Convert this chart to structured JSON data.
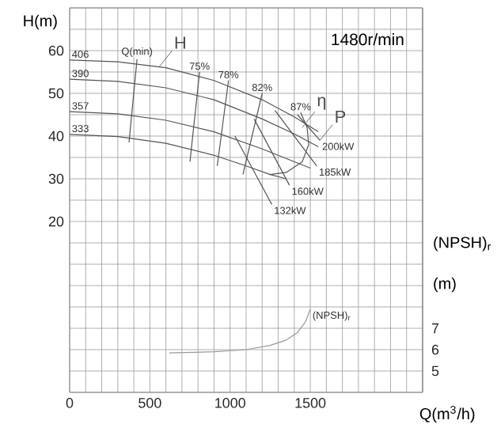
{
  "chart_data": {
    "type": "line",
    "xlabel": "Q(m$^{3}$/h)",
    "ylabel": "H(m)",
    "y2label": "(NPSH)$_{r}$ (m)",
    "xlim": [
      0,
      2200
    ],
    "ylim": [
      -20,
      70
    ],
    "y2lim": [
      4,
      22
    ],
    "xticks": [
      0,
      {
        "value": 100,
        "label": null
      },
      {
        "value": 200,
        "label": null
      },
      {
        "value": 300,
        "label": null
      },
      {
        "value": 400,
        "label": null
      },
      500,
      {
        "value": 600,
        "label": null
      },
      {
        "value": 700,
        "label": null
      },
      {
        "value": 800,
        "label": null
      },
      {
        "value": 900,
        "label": null
      },
      1000,
      {
        "value": 1100,
        "label": null
      },
      {
        "value": 1200,
        "label": null
      },
      {
        "value": 1300,
        "label": null
      },
      {
        "value": 1400,
        "label": null
      },
      1500,
      {
        "value": 1600,
        "label": null
      },
      {
        "value": 1700,
        "label": null
      },
      {
        "value": 1800,
        "label": null
      },
      {
        "value": 1900,
        "label": null
      },
      {
        "value": 2000,
        "label": null
      },
      {
        "value": 2100,
        "label": null
      },
      {
        "value": 2200,
        "label": null
      }
    ],
    "yticks": [
      {
        "value": -20,
        "label": null
      },
      {
        "value": -15,
        "label": null
      },
      {
        "value": -10,
        "label": null
      },
      {
        "value": -5,
        "label": null
      },
      {
        "value": 0,
        "label": null
      },
      {
        "value": 5,
        "label": null
      },
      {
        "value": 10,
        "label": null
      },
      {
        "value": 15,
        "label": null
      },
      20,
      {
        "value": 25,
        "label": null
      },
      30,
      {
        "value": 35,
        "label": null
      },
      40,
      {
        "value": 45,
        "label": null
      },
      50,
      {
        "value": 55,
        "label": null
      },
      60,
      {
        "value": 65,
        "label": null
      },
      {
        "value": 70,
        "label": null
      }
    ],
    "y2ticks": [
      5,
      6,
      7
    ],
    "grid": true,
    "series": [
      {
        "name": "406",
        "color": "#555555",
        "x": [
          0,
          300,
          600,
          900,
          1200,
          1400,
          1550
        ],
        "values": [
          57.8,
          57.4,
          56,
          53,
          48.5,
          44.5,
          41
        ]
      },
      {
        "name": "390",
        "color": "#555555",
        "x": [
          0,
          300,
          600,
          900,
          1200,
          1400,
          1550
        ],
        "values": [
          53.3,
          52.8,
          51.3,
          48.5,
          44,
          40.5,
          37.5
        ]
      },
      {
        "name": "357",
        "color": "#555555",
        "x": [
          0,
          300,
          600,
          900,
          1200,
          1400,
          1500
        ],
        "values": [
          45.7,
          45.2,
          43.7,
          41,
          37,
          34,
          32.5
        ]
      },
      {
        "name": "333",
        "color": "#555555",
        "x": [
          0,
          300,
          600,
          900,
          1100,
          1250,
          1350
        ],
        "values": [
          40.4,
          39.9,
          38.3,
          35.5,
          33,
          31,
          30
        ]
      },
      {
        "name": "Q(min)",
        "color": "#555555",
        "x": [
          420,
          370
        ],
        "values": [
          58,
          38.5
        ]
      },
      {
        "name": "75%",
        "color": "#555555",
        "x": [
          810,
          750
        ],
        "values": [
          55,
          34
        ]
      },
      {
        "name": "78%",
        "color": "#555555",
        "x": [
          990,
          920
        ],
        "values": [
          53,
          33
        ]
      },
      {
        "name": "82%",
        "color": "#555555",
        "x": [
          1200,
          1080
        ],
        "values": [
          50,
          31
        ]
      },
      {
        "name": "87%",
        "color": "#555555",
        "x": [
          1440,
          1480,
          1490,
          1450,
          1350,
          1250
        ],
        "values": [
          45.5,
          42,
          38,
          34,
          31.5,
          31
        ]
      },
      {
        "name": "200kW",
        "color": "#555555",
        "x": [
          1560,
          1420
        ],
        "values": [
          39,
          45
        ]
      },
      {
        "name": "185kW",
        "color": "#555555",
        "x": [
          1540,
          1280
        ],
        "values": [
          33,
          46
        ]
      },
      {
        "name": "160kW",
        "color": "#555555",
        "x": [
          1370,
          1150
        ],
        "values": [
          28.5,
          44
        ]
      },
      {
        "name": "132kW",
        "color": "#555555",
        "x": [
          1260,
          1030
        ],
        "values": [
          24,
          40
        ]
      },
      {
        "name": "(NPSH)$_{r}$",
        "color": "#999999",
        "axis": "y2",
        "x": [
          1500,
          1470,
          1420,
          1350,
          1250,
          1100,
          900,
          620
        ],
        "values": [
          7.9,
          7.3,
          6.8,
          6.45,
          6.2,
          6.0,
          5.9,
          5.85
        ]
      }
    ],
    "annotations": [
      "1480r/min",
      {
        "text": "H",
        "x": 560,
        "y": 56.3
      },
      {
        "text": "η",
        "x": 1450,
        "y": 42
      },
      {
        "text": "P",
        "x": 1560,
        "y": 39
      }
    ]
  }
}
